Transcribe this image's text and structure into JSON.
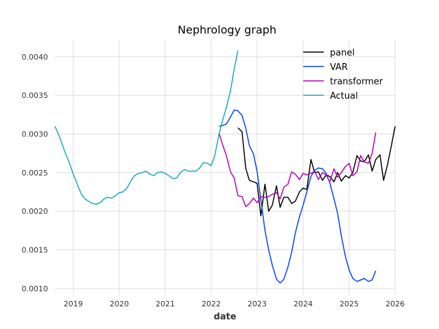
{
  "chart_data": {
    "type": "line",
    "title": "Nephrology graph",
    "xlabel": "date",
    "ylabel": "",
    "xlim": [
      2018.6,
      2026.0
    ],
    "ylim": [
      0.00091,
      0.00422
    ],
    "grid": true,
    "legend_position": "top-right",
    "x_ticks": [
      {
        "value": 2019,
        "label": "2019"
      },
      {
        "value": 2020,
        "label": "2020"
      },
      {
        "value": 2021,
        "label": "2021"
      },
      {
        "value": 2022,
        "label": "2022"
      },
      {
        "value": 2023,
        "label": "2023"
      },
      {
        "value": 2024,
        "label": "2024"
      },
      {
        "value": 2025,
        "label": "2025"
      },
      {
        "value": 2026,
        "label": "2026"
      }
    ],
    "y_ticks": [
      {
        "value": 0.001,
        "label": "0.0010"
      },
      {
        "value": 0.0015,
        "label": "0.0015"
      },
      {
        "value": 0.002,
        "label": "0.0020"
      },
      {
        "value": 0.0025,
        "label": "0.0025"
      },
      {
        "value": 0.003,
        "label": "0.0030"
      },
      {
        "value": 0.0035,
        "label": "0.0035"
      },
      {
        "value": 0.004,
        "label": "0.0040"
      }
    ],
    "series": [
      {
        "name": "panel",
        "color": "#000000",
        "points": [
          [
            2022.58,
            0.00308
          ],
          [
            2022.67,
            0.00303
          ],
          [
            2022.75,
            0.00256
          ],
          [
            2022.83,
            0.0024
          ],
          [
            2022.92,
            0.00238
          ],
          [
            2023.0,
            0.00236
          ],
          [
            2023.08,
            0.00194
          ],
          [
            2023.17,
            0.00235
          ],
          [
            2023.25,
            0.002
          ],
          [
            2023.33,
            0.00208
          ],
          [
            2023.42,
            0.00233
          ],
          [
            2023.5,
            0.00205
          ],
          [
            2023.58,
            0.00218
          ],
          [
            2023.67,
            0.00218
          ],
          [
            2023.75,
            0.0021
          ],
          [
            2023.83,
            0.00213
          ],
          [
            2023.92,
            0.00225
          ],
          [
            2024.0,
            0.0023
          ],
          [
            2024.08,
            0.00228
          ],
          [
            2024.17,
            0.00267
          ],
          [
            2024.25,
            0.0025
          ],
          [
            2024.33,
            0.00251
          ],
          [
            2024.42,
            0.0024
          ],
          [
            2024.5,
            0.00247
          ],
          [
            2024.58,
            0.00245
          ],
          [
            2024.67,
            0.00238
          ],
          [
            2024.75,
            0.0025
          ],
          [
            2024.83,
            0.00239
          ],
          [
            2024.92,
            0.00246
          ],
          [
            2025.0,
            0.00243
          ],
          [
            2025.08,
            0.0025
          ],
          [
            2025.17,
            0.00272
          ],
          [
            2025.25,
            0.00265
          ],
          [
            2025.33,
            0.00264
          ],
          [
            2025.42,
            0.00273
          ],
          [
            2025.5,
            0.00252
          ],
          [
            2025.58,
            0.00267
          ],
          [
            2025.67,
            0.00273
          ],
          [
            2025.75,
            0.0024
          ],
          [
            2025.83,
            0.00259
          ],
          [
            2025.92,
            0.00285
          ],
          [
            2026.0,
            0.0031
          ]
        ]
      },
      {
        "name": "VAR",
        "color": "#0044ee",
        "points": [
          [
            2022.17,
            0.0031
          ],
          [
            2022.25,
            0.00311
          ],
          [
            2022.33,
            0.00313
          ],
          [
            2022.42,
            0.00322
          ],
          [
            2022.5,
            0.00331
          ],
          [
            2022.58,
            0.0033
          ],
          [
            2022.67,
            0.00324
          ],
          [
            2022.75,
            0.00308
          ],
          [
            2022.83,
            0.00285
          ],
          [
            2022.92,
            0.00274
          ],
          [
            2023.0,
            0.00251
          ],
          [
            2023.08,
            0.00215
          ],
          [
            2023.17,
            0.00175
          ],
          [
            2023.25,
            0.0015
          ],
          [
            2023.33,
            0.0013
          ],
          [
            2023.42,
            0.00112
          ],
          [
            2023.5,
            0.00107
          ],
          [
            2023.58,
            0.00112
          ],
          [
            2023.67,
            0.00128
          ],
          [
            2023.75,
            0.00147
          ],
          [
            2023.83,
            0.00172
          ],
          [
            2023.92,
            0.00193
          ],
          [
            2024.0,
            0.00208
          ],
          [
            2024.08,
            0.00225
          ],
          [
            2024.17,
            0.00245
          ],
          [
            2024.25,
            0.00253
          ],
          [
            2024.33,
            0.00256
          ],
          [
            2024.42,
            0.00255
          ],
          [
            2024.5,
            0.00249
          ],
          [
            2024.58,
            0.00237
          ],
          [
            2024.67,
            0.00216
          ],
          [
            2024.75,
            0.00197
          ],
          [
            2024.83,
            0.00168
          ],
          [
            2024.92,
            0.00141
          ],
          [
            2025.0,
            0.00124
          ],
          [
            2025.08,
            0.00113
          ],
          [
            2025.17,
            0.00109
          ],
          [
            2025.25,
            0.00111
          ],
          [
            2025.33,
            0.00113
          ],
          [
            2025.42,
            0.00109
          ],
          [
            2025.5,
            0.00111
          ],
          [
            2025.58,
            0.00123
          ]
        ]
      },
      {
        "name": "transformer",
        "color": "#b400b4",
        "points": [
          [
            2022.17,
            0.00301
          ],
          [
            2022.25,
            0.00286
          ],
          [
            2022.33,
            0.00272
          ],
          [
            2022.42,
            0.00251
          ],
          [
            2022.5,
            0.00243
          ],
          [
            2022.58,
            0.0022
          ],
          [
            2022.67,
            0.00219
          ],
          [
            2022.75,
            0.00206
          ],
          [
            2022.83,
            0.0021
          ],
          [
            2022.92,
            0.00217
          ],
          [
            2023.0,
            0.00211
          ],
          [
            2023.08,
            0.00219
          ],
          [
            2023.17,
            0.00218
          ],
          [
            2023.25,
            0.00219
          ],
          [
            2023.33,
            0.00222
          ],
          [
            2023.42,
            0.00224
          ],
          [
            2023.5,
            0.00216
          ],
          [
            2023.58,
            0.00231
          ],
          [
            2023.67,
            0.00235
          ],
          [
            2023.75,
            0.00251
          ],
          [
            2023.83,
            0.00248
          ],
          [
            2023.92,
            0.00241
          ],
          [
            2024.0,
            0.00249
          ],
          [
            2024.08,
            0.00247
          ],
          [
            2024.17,
            0.00249
          ],
          [
            2024.25,
            0.00252
          ],
          [
            2024.33,
            0.00241
          ],
          [
            2024.42,
            0.0025
          ],
          [
            2024.5,
            0.00247
          ],
          [
            2024.58,
            0.00238
          ],
          [
            2024.67,
            0.00255
          ],
          [
            2024.75,
            0.00244
          ],
          [
            2024.83,
            0.0025
          ],
          [
            2024.92,
            0.00258
          ],
          [
            2025.0,
            0.00262
          ],
          [
            2025.08,
            0.00246
          ],
          [
            2025.17,
            0.00251
          ],
          [
            2025.25,
            0.00272
          ],
          [
            2025.33,
            0.00264
          ],
          [
            2025.42,
            0.00262
          ],
          [
            2025.5,
            0.00275
          ],
          [
            2025.58,
            0.00302
          ]
        ]
      },
      {
        "name": "Actual",
        "color": "#18aab8",
        "points": [
          [
            2018.6,
            0.0031
          ],
          [
            2018.67,
            0.00301
          ],
          [
            2018.75,
            0.00288
          ],
          [
            2018.83,
            0.00275
          ],
          [
            2018.92,
            0.00262
          ],
          [
            2019.0,
            0.00248
          ],
          [
            2019.08,
            0.00236
          ],
          [
            2019.17,
            0.00223
          ],
          [
            2019.25,
            0.00216
          ],
          [
            2019.33,
            0.00213
          ],
          [
            2019.42,
            0.0021
          ],
          [
            2019.5,
            0.00209
          ],
          [
            2019.58,
            0.00211
          ],
          [
            2019.67,
            0.00216
          ],
          [
            2019.75,
            0.00218
          ],
          [
            2019.83,
            0.00217
          ],
          [
            2019.92,
            0.0022
          ],
          [
            2020.0,
            0.00224
          ],
          [
            2020.08,
            0.00225
          ],
          [
            2020.17,
            0.0023
          ],
          [
            2020.25,
            0.00239
          ],
          [
            2020.33,
            0.00246
          ],
          [
            2020.42,
            0.00249
          ],
          [
            2020.5,
            0.0025
          ],
          [
            2020.58,
            0.00252
          ],
          [
            2020.67,
            0.00248
          ],
          [
            2020.75,
            0.00246
          ],
          [
            2020.83,
            0.0025
          ],
          [
            2020.92,
            0.00251
          ],
          [
            2021.0,
            0.00249
          ],
          [
            2021.08,
            0.00246
          ],
          [
            2021.17,
            0.00242
          ],
          [
            2021.25,
            0.00243
          ],
          [
            2021.33,
            0.0025
          ],
          [
            2021.42,
            0.00254
          ],
          [
            2021.5,
            0.00252
          ],
          [
            2021.58,
            0.00252
          ],
          [
            2021.67,
            0.00252
          ],
          [
            2021.75,
            0.00256
          ],
          [
            2021.83,
            0.00263
          ],
          [
            2021.92,
            0.00262
          ],
          [
            2022.0,
            0.00259
          ],
          [
            2022.08,
            0.00273
          ],
          [
            2022.17,
            0.003
          ],
          [
            2022.25,
            0.00318
          ],
          [
            2022.33,
            0.00334
          ],
          [
            2022.42,
            0.00356
          ],
          [
            2022.5,
            0.00384
          ],
          [
            2022.58,
            0.00408
          ]
        ]
      }
    ]
  }
}
